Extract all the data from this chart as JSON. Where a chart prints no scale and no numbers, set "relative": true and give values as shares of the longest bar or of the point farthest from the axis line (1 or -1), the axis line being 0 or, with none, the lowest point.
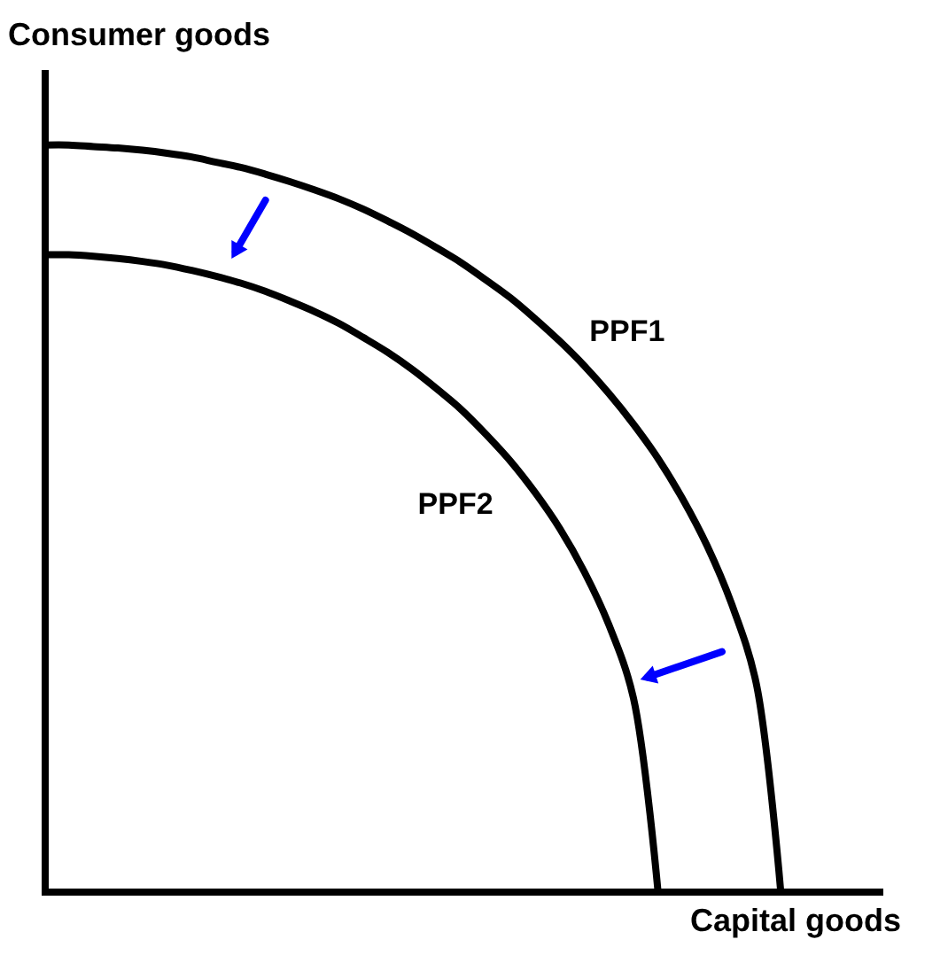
{
  "chart_data": {
    "type": "line",
    "relative": true,
    "xlabel": "Capital goods",
    "ylabel": "Consumer goods",
    "categories": [
      null,
      null,
      null,
      null,
      null,
      null,
      null,
      null,
      null,
      null,
      null,
      null,
      null,
      null,
      null,
      null,
      null,
      null,
      null,
      null,
      null,
      null,
      null,
      null,
      null,
      null,
      null,
      null,
      null,
      null,
      null,
      null,
      null,
      null,
      null
    ],
    "series": [
      {
        "name": "PPF1",
        "color": "#000000",
        "values": [
          1.0,
          1.0,
          0.998,
          0.996,
          0.993,
          0.989,
          0.984,
          0.977,
          0.97,
          0.961,
          0.951,
          0.94,
          0.928,
          0.914,
          0.898,
          0.881,
          0.862,
          0.842,
          0.819,
          0.795,
          0.767,
          0.737,
          0.704,
          0.667,
          0.626,
          0.58,
          0.526,
          0.463,
          0.385,
          0.279,
          0,
          null,
          null,
          null,
          null
        ]
      },
      {
        "name": "PPF2",
        "color": "#000000",
        "values": [
          0.853,
          0.853,
          0.851,
          0.848,
          0.844,
          0.839,
          0.832,
          0.824,
          0.815,
          0.804,
          0.791,
          0.777,
          0.761,
          0.742,
          0.722,
          0.699,
          0.673,
          0.645,
          0.612,
          0.576,
          0.534,
          0.486,
          0.428,
          0.357,
          0.259,
          0,
          null,
          null,
          null,
          null,
          null,
          null,
          null,
          null,
          null
        ]
      }
    ]
  }
}
